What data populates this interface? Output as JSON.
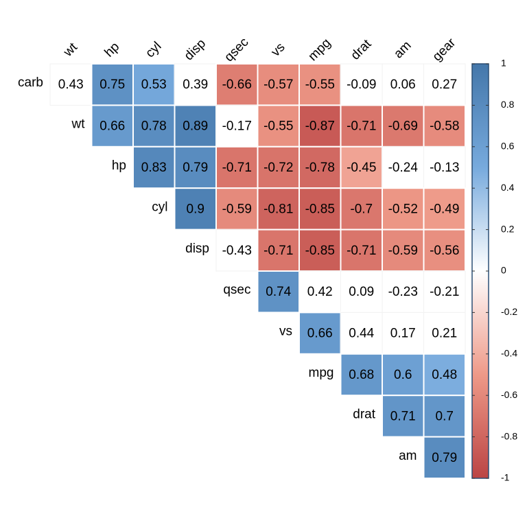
{
  "chart_data": {
    "type": "heatmap",
    "columns": [
      "wt",
      "hp",
      "cyl",
      "disp",
      "qsec",
      "vs",
      "mpg",
      "drat",
      "am",
      "gear"
    ],
    "rows": [
      "carb",
      "wt",
      "hp",
      "cyl",
      "disp",
      "qsec",
      "vs",
      "mpg",
      "drat",
      "am"
    ],
    "values": [
      [
        0.43,
        0.75,
        0.53,
        0.39,
        -0.66,
        -0.57,
        -0.55,
        -0.09,
        0.06,
        0.27
      ],
      [
        null,
        0.66,
        0.78,
        0.89,
        -0.17,
        -0.55,
        -0.87,
        -0.71,
        -0.69,
        -0.58
      ],
      [
        null,
        null,
        0.83,
        0.79,
        -0.71,
        -0.72,
        -0.78,
        -0.45,
        -0.24,
        -0.13
      ],
      [
        null,
        null,
        null,
        0.9,
        -0.59,
        -0.81,
        -0.85,
        -0.7,
        -0.52,
        -0.49
      ],
      [
        null,
        null,
        null,
        null,
        -0.43,
        -0.71,
        -0.85,
        -0.71,
        -0.59,
        -0.56
      ],
      [
        null,
        null,
        null,
        null,
        null,
        0.74,
        0.42,
        0.09,
        -0.23,
        -0.21
      ],
      [
        null,
        null,
        null,
        null,
        null,
        null,
        0.66,
        0.44,
        0.17,
        0.21
      ],
      [
        null,
        null,
        null,
        null,
        null,
        null,
        null,
        0.68,
        0.6,
        0.48
      ],
      [
        null,
        null,
        null,
        null,
        null,
        null,
        null,
        null,
        0.71,
        0.7
      ],
      [
        null,
        null,
        null,
        null,
        null,
        null,
        null,
        null,
        null,
        0.79
      ]
    ],
    "filled": [
      [
        false,
        true,
        true,
        false,
        true,
        true,
        true,
        false,
        false,
        false
      ],
      [
        null,
        true,
        true,
        true,
        false,
        true,
        true,
        true,
        true,
        true
      ],
      [
        null,
        null,
        true,
        true,
        true,
        true,
        true,
        true,
        false,
        false
      ],
      [
        null,
        null,
        null,
        true,
        true,
        true,
        true,
        true,
        true,
        true
      ],
      [
        null,
        null,
        null,
        null,
        false,
        true,
        true,
        true,
        true,
        true
      ],
      [
        null,
        null,
        null,
        null,
        null,
        true,
        false,
        false,
        false,
        false
      ],
      [
        null,
        null,
        null,
        null,
        null,
        null,
        true,
        false,
        false,
        false
      ],
      [
        null,
        null,
        null,
        null,
        null,
        null,
        null,
        true,
        true,
        true
      ],
      [
        null,
        null,
        null,
        null,
        null,
        null,
        null,
        null,
        true,
        true
      ],
      [
        null,
        null,
        null,
        null,
        null,
        null,
        null,
        null,
        null,
        true
      ]
    ],
    "colors": [
      "#BB4444",
      "#EE9988",
      "#FFFFFF",
      "#77AADD",
      "#4477AA"
    ],
    "clim": [
      -1,
      1
    ],
    "cticks": [
      1,
      0.8,
      0.6,
      0.4,
      0.2,
      0,
      -0.2,
      -0.4,
      -0.6,
      -0.8,
      -1
    ]
  }
}
